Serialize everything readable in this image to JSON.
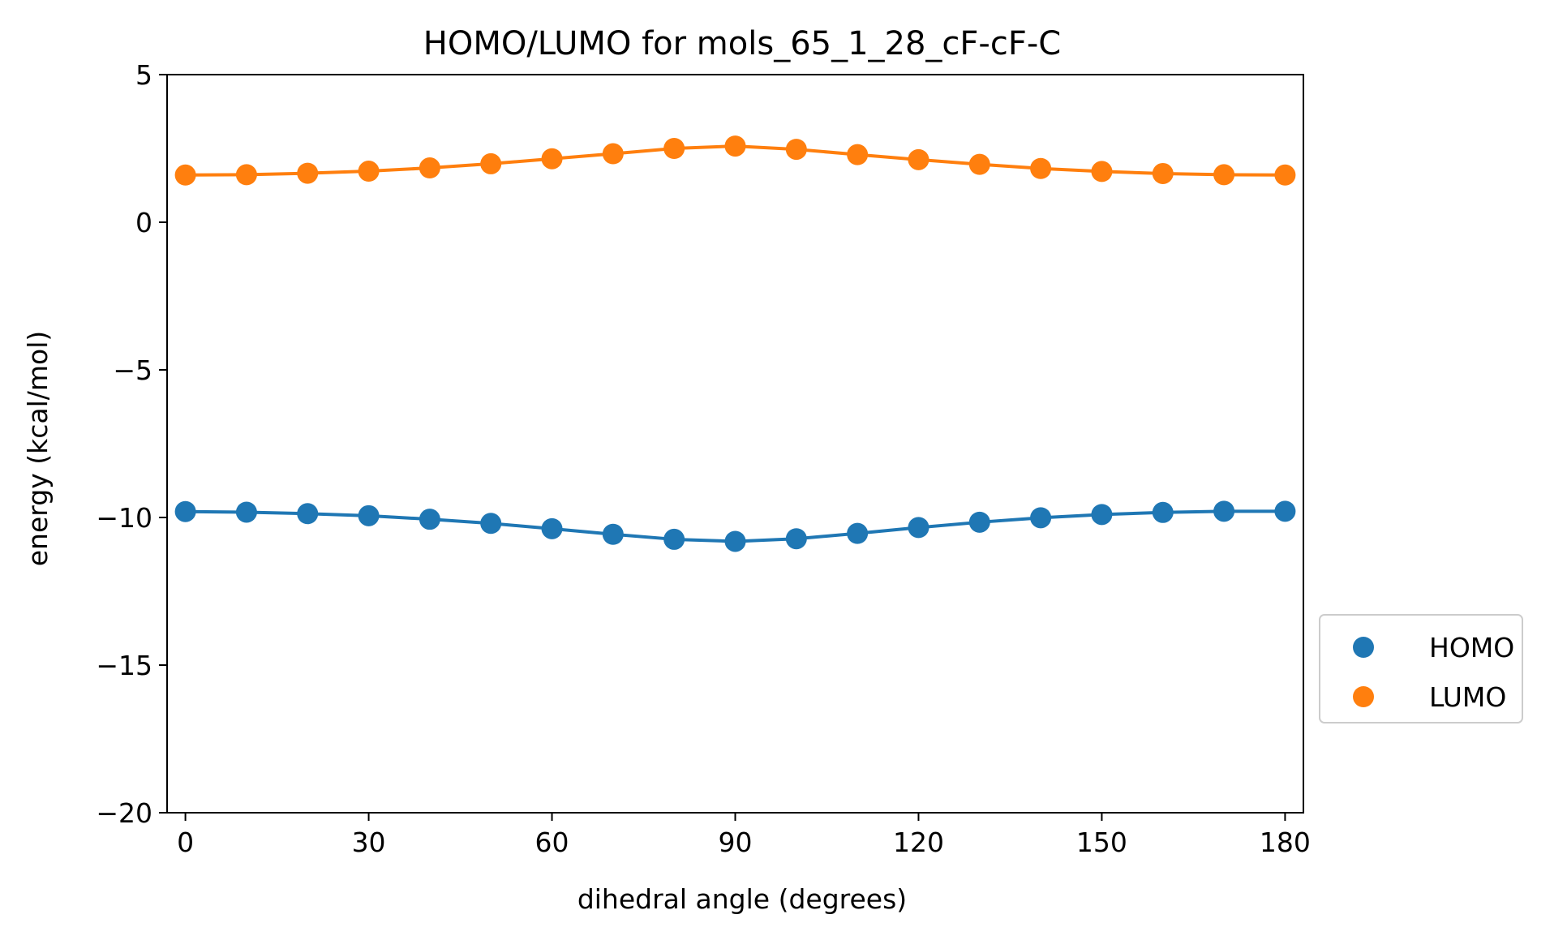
{
  "chart_data": {
    "type": "line",
    "title": "HOMO/LUMO for mols_65_1_28_cF-cF-C",
    "xlabel": "dihedral angle (degrees)",
    "ylabel": "energy (kcal/mol)",
    "xlim": [
      -3,
      183
    ],
    "ylim": [
      -20,
      5
    ],
    "xticks": [
      0,
      30,
      60,
      90,
      120,
      150,
      180
    ],
    "xtick_labels": [
      "0",
      "30",
      "60",
      "90",
      "120",
      "150",
      "180"
    ],
    "yticks": [
      -20,
      -15,
      -10,
      -5,
      0,
      5
    ],
    "ytick_labels": [
      "−20",
      "−15",
      "−10",
      "−5",
      "0",
      "5"
    ],
    "grid": false,
    "legend_position": "outside-right-bottom",
    "x": [
      0,
      10,
      20,
      30,
      40,
      50,
      60,
      70,
      80,
      90,
      100,
      110,
      120,
      130,
      140,
      150,
      160,
      170,
      180
    ],
    "series": [
      {
        "name": "HOMO",
        "color": "#1f77b4",
        "values": [
          -9.8,
          -9.82,
          -9.87,
          -9.94,
          -10.06,
          -10.2,
          -10.38,
          -10.57,
          -10.74,
          -10.81,
          -10.72,
          -10.54,
          -10.34,
          -10.16,
          -10.01,
          -9.9,
          -9.83,
          -9.79,
          -9.79
        ]
      },
      {
        "name": "LUMO",
        "color": "#ff7f0e",
        "values": [
          1.6,
          1.61,
          1.66,
          1.73,
          1.84,
          1.98,
          2.15,
          2.32,
          2.5,
          2.58,
          2.47,
          2.29,
          2.12,
          1.96,
          1.82,
          1.72,
          1.65,
          1.61,
          1.6
        ]
      }
    ]
  }
}
